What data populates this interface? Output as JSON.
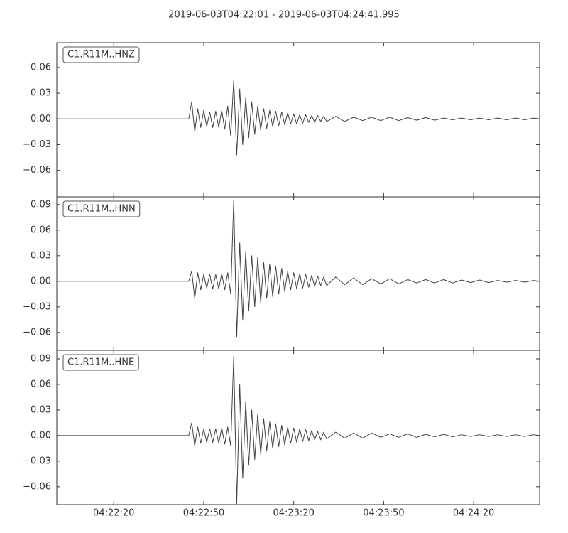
{
  "chart_data": [
    {
      "type": "line",
      "title": "2019-06-03T04:22:01  -  2019-06-03T04:24:41.995",
      "label": "C1.R11M..HNZ",
      "color": "#404040",
      "x": [
        0,
        44,
        45,
        46,
        47,
        48,
        49,
        50,
        51,
        52,
        53,
        54,
        55,
        56,
        57,
        58,
        59,
        60,
        61,
        62,
        63,
        64,
        65,
        66,
        67,
        68,
        69,
        70,
        71,
        72,
        73,
        74,
        75,
        76,
        77,
        78,
        79,
        80,
        81,
        82,
        83,
        84,
        85,
        86,
        87,
        88,
        89,
        90,
        93,
        96,
        99,
        102,
        105,
        108,
        111,
        114,
        117,
        120,
        123,
        126,
        129,
        132,
        135,
        138,
        141,
        144,
        147,
        150,
        153,
        156,
        159,
        161
      ],
      "values": [
        0,
        0,
        0.02,
        -0.015,
        0.012,
        -0.01,
        0.01,
        -0.009,
        0.008,
        -0.01,
        0.009,
        -0.01,
        0.01,
        -0.012,
        0.015,
        -0.02,
        0.045,
        -0.042,
        0.035,
        -0.03,
        0.025,
        -0.022,
        0.02,
        -0.018,
        0.015,
        -0.013,
        0.012,
        -0.011,
        0.01,
        -0.009,
        0.009,
        -0.008,
        0.008,
        -0.007,
        0.007,
        -0.006,
        0.006,
        -0.006,
        0.005,
        -0.005,
        0.005,
        -0.004,
        0.004,
        -0.004,
        0.004,
        -0.003,
        0.003,
        -0.003,
        0.003,
        -0.003,
        0.002,
        -0.002,
        0.002,
        -0.002,
        0.002,
        -0.002,
        0.0015,
        -0.0015,
        0.0015,
        -0.0015,
        0.001,
        -0.001,
        0.001,
        -0.001,
        0.001,
        -0.001,
        0.001,
        -0.001,
        0.001,
        -0.001,
        0.001,
        0
      ],
      "xlim": [
        0,
        160.995
      ],
      "ylim": [
        -0.091,
        0.089
      ],
      "yticks": [
        0.06,
        0.03,
        {
          "value": 0,
          "label": "0.00"
        },
        {
          "value": -0.03,
          "label": "−0.03"
        },
        {
          "value": -0.06,
          "label": "−0.06"
        }
      ]
    },
    {
      "type": "line",
      "label": "C1.R11M..HNN",
      "color": "#404040",
      "x": [
        0,
        44,
        45,
        46,
        47,
        48,
        49,
        50,
        51,
        52,
        53,
        54,
        55,
        56,
        57,
        58,
        59,
        60,
        61,
        62,
        63,
        64,
        65,
        66,
        67,
        68,
        69,
        70,
        71,
        72,
        73,
        74,
        75,
        76,
        77,
        78,
        79,
        80,
        81,
        82,
        83,
        84,
        85,
        86,
        87,
        88,
        89,
        90,
        93,
        96,
        99,
        102,
        105,
        108,
        111,
        114,
        117,
        120,
        123,
        126,
        129,
        132,
        135,
        138,
        141,
        144,
        147,
        150,
        153,
        156,
        159,
        161
      ],
      "values": [
        0,
        0,
        0.012,
        -0.02,
        0.01,
        -0.01,
        0.008,
        -0.008,
        0.008,
        -0.009,
        0.008,
        -0.009,
        0.009,
        -0.01,
        0.01,
        -0.015,
        0.095,
        -0.065,
        0.045,
        -0.045,
        0.035,
        -0.035,
        0.03,
        -0.03,
        0.028,
        -0.025,
        0.022,
        -0.02,
        0.02,
        -0.018,
        0.018,
        -0.015,
        0.015,
        -0.012,
        0.012,
        -0.01,
        0.01,
        -0.009,
        0.009,
        -0.008,
        0.008,
        -0.007,
        0.007,
        -0.006,
        0.006,
        -0.005,
        0.005,
        -0.005,
        0.005,
        -0.004,
        0.004,
        -0.004,
        0.003,
        -0.003,
        0.003,
        -0.003,
        0.002,
        -0.002,
        0.002,
        -0.002,
        0.002,
        -0.002,
        0.0015,
        -0.0015,
        0.0015,
        -0.0015,
        0.001,
        -0.001,
        0.001,
        -0.001,
        0.001,
        0
      ],
      "xlim": [
        0,
        160.995
      ],
      "ylim": [
        -0.081,
        0.099
      ],
      "yticks": [
        0.09,
        0.06,
        0.03,
        {
          "value": 0,
          "label": "0.00"
        },
        {
          "value": -0.03,
          "label": "−0.03"
        },
        {
          "value": -0.06,
          "label": "−0.06"
        }
      ]
    },
    {
      "type": "line",
      "label": "C1.R11M..HNE",
      "color": "#404040",
      "x": [
        0,
        44,
        45,
        46,
        47,
        48,
        49,
        50,
        51,
        52,
        53,
        54,
        55,
        56,
        57,
        58,
        59,
        60,
        61,
        62,
        63,
        64,
        65,
        66,
        67,
        68,
        69,
        70,
        71,
        72,
        73,
        74,
        75,
        76,
        77,
        78,
        79,
        80,
        81,
        82,
        83,
        84,
        85,
        86,
        87,
        88,
        89,
        90,
        93,
        96,
        99,
        102,
        105,
        108,
        111,
        114,
        117,
        120,
        123,
        126,
        129,
        132,
        135,
        138,
        141,
        144,
        147,
        150,
        153,
        156,
        159,
        161
      ],
      "values": [
        0,
        0,
        0.015,
        -0.012,
        0.01,
        -0.009,
        0.008,
        -0.008,
        0.008,
        -0.008,
        0.008,
        -0.009,
        0.009,
        -0.01,
        0.01,
        -0.012,
        0.093,
        -0.08,
        0.06,
        -0.05,
        0.04,
        -0.035,
        0.03,
        -0.028,
        0.025,
        -0.022,
        0.02,
        -0.018,
        0.016,
        -0.015,
        0.014,
        -0.013,
        0.012,
        -0.011,
        0.01,
        -0.009,
        0.009,
        -0.008,
        0.008,
        -0.007,
        0.007,
        -0.006,
        0.006,
        -0.005,
        0.005,
        -0.005,
        0.004,
        -0.004,
        0.004,
        -0.003,
        0.003,
        -0.003,
        0.003,
        -0.002,
        0.002,
        -0.002,
        0.002,
        -0.002,
        0.0015,
        -0.0015,
        0.0015,
        -0.0015,
        0.001,
        -0.001,
        0.001,
        -0.001,
        0.001,
        -0.001,
        0.001,
        -0.001,
        0.001,
        0
      ],
      "xlim": [
        0,
        160.995
      ],
      "ylim": [
        -0.081,
        0.1
      ],
      "yticks": [
        0.09,
        0.06,
        0.03,
        {
          "value": 0,
          "label": "0.00"
        },
        {
          "value": -0.03,
          "label": "−0.03"
        },
        {
          "value": -0.06,
          "label": "−0.06"
        }
      ],
      "xticks": [
        {
          "value": 19,
          "label": "04:22:20"
        },
        {
          "value": 49,
          "label": "04:22:50"
        },
        {
          "value": 79,
          "label": "04:23:20"
        },
        {
          "value": 109,
          "label": "04:23:50"
        },
        {
          "value": 139,
          "label": "04:24:20"
        }
      ]
    }
  ]
}
